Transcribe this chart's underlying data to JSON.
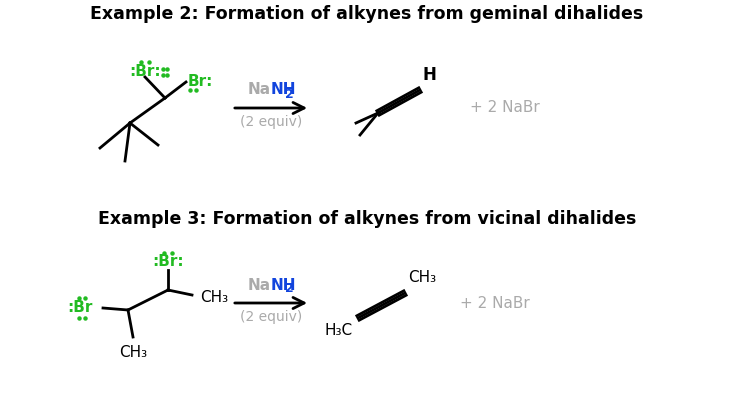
{
  "title1": "Example 2: Formation of alkynes from geminal dihalides",
  "title2": "Example 3: Formation of alkynes from vicinal dihalides",
  "byproduct1": "+ 2 NaBr",
  "byproduct2": "+ 2 NaBr",
  "bg_color": "#ffffff",
  "black": "#000000",
  "green": "#22bb22",
  "gray": "#aaaaaa",
  "blue": "#1144dd",
  "title_fontsize": 12.5,
  "body_fontsize": 11
}
